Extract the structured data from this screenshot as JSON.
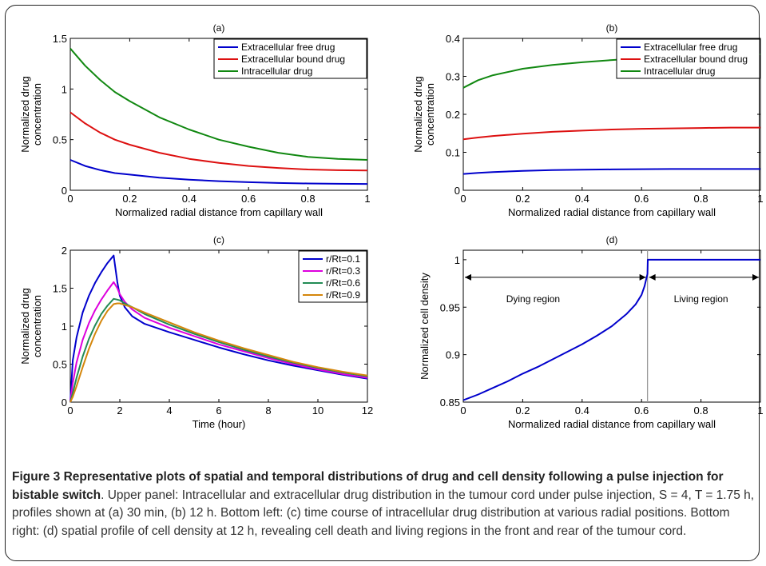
{
  "caption": {
    "title": "Figure 3 Representative plots of spatial and temporal distributions of drug and cell density following a pulse injection for bistable switch",
    "body": ". Upper panel: Intracellular and extracellular drug distribution in the tumour cord under pulse injection, S = 4, T = 1.75 h, profiles shown at (a) 30 min, (b) 12 h. Bottom left: (c) time course of intracellular drug distribution at various radial positions. Bottom right: (d) spatial profile of cell density at 12 h, revealing cell death and living regions in the front and rear of the tumour cord."
  },
  "chart_data": [
    {
      "id": "a",
      "type": "line",
      "title": "(a)",
      "xlabel": "Normalized radial distance from capillary wall",
      "ylabel": "Normalized drug concentration",
      "ylabel_lines": [
        "Normalized drug",
        "concentration"
      ],
      "xlim": [
        0,
        1
      ],
      "ylim": [
        0,
        1.5
      ],
      "xticks": [
        0,
        0.2,
        0.4,
        0.6,
        0.8,
        1
      ],
      "xticklabels": [
        "0",
        "0.2",
        "0.4",
        "0.6",
        "0.8",
        "1"
      ],
      "yticks": [
        0,
        0.5,
        1,
        1.5
      ],
      "yticklabels": [
        "0",
        "0.5",
        "1",
        "1.5"
      ],
      "legend_position": "top-right",
      "series": [
        {
          "name": "Extracellular free drug",
          "color": "#0000cc",
          "x": [
            0,
            0.05,
            0.1,
            0.15,
            0.2,
            0.3,
            0.4,
            0.5,
            0.6,
            0.7,
            0.8,
            0.9,
            1.0
          ],
          "y": [
            0.3,
            0.24,
            0.2,
            0.17,
            0.155,
            0.125,
            0.105,
            0.09,
            0.08,
            0.072,
            0.067,
            0.064,
            0.062
          ]
        },
        {
          "name": "Extracellular bound drug",
          "color": "#dd1111",
          "x": [
            0,
            0.05,
            0.1,
            0.15,
            0.2,
            0.3,
            0.4,
            0.5,
            0.6,
            0.7,
            0.8,
            0.9,
            1.0
          ],
          "y": [
            0.77,
            0.66,
            0.57,
            0.5,
            0.45,
            0.37,
            0.31,
            0.27,
            0.24,
            0.22,
            0.205,
            0.198,
            0.195
          ]
        },
        {
          "name": "Intracellular drug",
          "color": "#118811",
          "x": [
            0,
            0.05,
            0.1,
            0.15,
            0.2,
            0.3,
            0.4,
            0.5,
            0.6,
            0.7,
            0.8,
            0.9,
            1.0
          ],
          "y": [
            1.4,
            1.23,
            1.09,
            0.97,
            0.88,
            0.72,
            0.6,
            0.5,
            0.43,
            0.37,
            0.33,
            0.31,
            0.3
          ]
        }
      ]
    },
    {
      "id": "b",
      "type": "line",
      "title": "(b)",
      "xlabel": "Normalized radial distance from capillary wall",
      "ylabel": "Normalized drug concentration",
      "ylabel_lines": [
        "Normalized drug",
        "concentration"
      ],
      "xlim": [
        0,
        1
      ],
      "ylim": [
        0,
        0.4
      ],
      "xticks": [
        0,
        0.2,
        0.4,
        0.6,
        0.8,
        1
      ],
      "xticklabels": [
        "0",
        "0.2",
        "0.4",
        "0.6",
        "0.8",
        "1"
      ],
      "yticks": [
        0,
        0.1,
        0.2,
        0.3,
        0.4
      ],
      "yticklabels": [
        "0",
        "0.1",
        "0.2",
        "0.3",
        "0.4"
      ],
      "legend_position": "top-right",
      "series": [
        {
          "name": "Extracellular free drug",
          "color": "#0000cc",
          "x": [
            0,
            0.05,
            0.1,
            0.2,
            0.3,
            0.4,
            0.5,
            0.6,
            0.7,
            0.8,
            0.9,
            1.0
          ],
          "y": [
            0.043,
            0.046,
            0.048,
            0.051,
            0.053,
            0.054,
            0.055,
            0.0555,
            0.056,
            0.056,
            0.056,
            0.056
          ]
        },
        {
          "name": "Extracellular bound drug",
          "color": "#dd1111",
          "x": [
            0,
            0.05,
            0.1,
            0.2,
            0.3,
            0.4,
            0.5,
            0.6,
            0.7,
            0.8,
            0.9,
            1.0
          ],
          "y": [
            0.134,
            0.139,
            0.143,
            0.149,
            0.154,
            0.157,
            0.16,
            0.162,
            0.163,
            0.164,
            0.165,
            0.165
          ]
        },
        {
          "name": "Intracellular drug",
          "color": "#118811",
          "x": [
            0,
            0.05,
            0.1,
            0.2,
            0.3,
            0.4,
            0.5,
            0.6,
            0.7,
            0.8,
            0.9,
            1.0
          ],
          "y": [
            0.27,
            0.29,
            0.303,
            0.32,
            0.33,
            0.337,
            0.343,
            0.348,
            0.352,
            0.355,
            0.357,
            0.358
          ]
        }
      ]
    },
    {
      "id": "c",
      "type": "line",
      "title": "(c)",
      "xlabel": "Time (hour)",
      "ylabel": "Normalized drug concentration",
      "ylabel_lines": [
        "Normalized drug",
        "concentration"
      ],
      "xlim": [
        0,
        12
      ],
      "ylim": [
        0,
        2
      ],
      "xticks": [
        0,
        2,
        4,
        6,
        8,
        10,
        12
      ],
      "xticklabels": [
        "0",
        "2",
        "4",
        "6",
        "8",
        "10",
        "12"
      ],
      "yticks": [
        0,
        0.5,
        1,
        1.5,
        2
      ],
      "yticklabels": [
        "0",
        "0.5",
        "1",
        "1.5",
        "2"
      ],
      "legend_position": "top-right",
      "series": [
        {
          "name": "r/Rt=0.1",
          "color": "#0000cc",
          "x": [
            0,
            0.1,
            0.25,
            0.5,
            0.75,
            1.0,
            1.25,
            1.5,
            1.75,
            1.9,
            2.0,
            2.2,
            2.5,
            3,
            4,
            5,
            6,
            7,
            8,
            9,
            10,
            11,
            12
          ],
          "y": [
            0,
            0.55,
            0.85,
            1.18,
            1.4,
            1.57,
            1.71,
            1.83,
            1.93,
            1.58,
            1.4,
            1.25,
            1.13,
            1.03,
            0.92,
            0.82,
            0.72,
            0.63,
            0.55,
            0.48,
            0.42,
            0.36,
            0.31
          ]
        },
        {
          "name": "r/Rt=0.3",
          "color": "#dd00dd",
          "x": [
            0,
            0.1,
            0.25,
            0.5,
            0.75,
            1.0,
            1.25,
            1.5,
            1.75,
            1.9,
            2.0,
            2.2,
            2.5,
            3,
            4,
            5,
            6,
            7,
            8,
            9,
            10,
            11,
            12
          ],
          "y": [
            0,
            0.25,
            0.52,
            0.82,
            1.04,
            1.21,
            1.35,
            1.47,
            1.58,
            1.5,
            1.42,
            1.32,
            1.22,
            1.11,
            0.98,
            0.87,
            0.76,
            0.67,
            0.58,
            0.5,
            0.43,
            0.37,
            0.32
          ]
        },
        {
          "name": "r/Rt=0.6",
          "color": "#228b55",
          "x": [
            0,
            0.1,
            0.25,
            0.5,
            0.75,
            1.0,
            1.25,
            1.5,
            1.75,
            1.9,
            2.0,
            2.2,
            2.5,
            3,
            4,
            5,
            6,
            7,
            8,
            9,
            10,
            11,
            12
          ],
          "y": [
            0,
            0.12,
            0.32,
            0.6,
            0.83,
            1.01,
            1.16,
            1.27,
            1.36,
            1.35,
            1.34,
            1.3,
            1.25,
            1.16,
            1.02,
            0.9,
            0.79,
            0.69,
            0.6,
            0.52,
            0.45,
            0.39,
            0.34
          ]
        },
        {
          "name": "r/Rt=0.9",
          "color": "#d4860b",
          "x": [
            0,
            0.1,
            0.25,
            0.5,
            0.75,
            1.0,
            1.25,
            1.5,
            1.75,
            1.9,
            2.0,
            2.2,
            2.5,
            3,
            4,
            5,
            6,
            7,
            8,
            9,
            10,
            11,
            12
          ],
          "y": [
            0,
            0.07,
            0.21,
            0.46,
            0.7,
            0.9,
            1.07,
            1.2,
            1.29,
            1.3,
            1.3,
            1.28,
            1.25,
            1.18,
            1.05,
            0.92,
            0.81,
            0.71,
            0.62,
            0.53,
            0.46,
            0.4,
            0.35
          ]
        }
      ]
    },
    {
      "id": "d",
      "type": "line",
      "title": "(d)",
      "xlabel": "Normalized radial distance from capillary wall",
      "ylabel": "Normalized cell density",
      "ylabel_lines": [
        "Normalized cell density"
      ],
      "xlim": [
        0,
        1
      ],
      "ylim": [
        0.85,
        1.01
      ],
      "xticks": [
        0,
        0.2,
        0.4,
        0.6,
        0.8,
        1
      ],
      "xticklabels": [
        "0",
        "0.2",
        "0.4",
        "0.6",
        "0.8",
        "1"
      ],
      "yticks": [
        0.85,
        0.9,
        0.95,
        1
      ],
      "yticklabels": [
        "0.85",
        "0.9",
        "0.95",
        "1"
      ],
      "boundary_x": 0.62,
      "annotations": [
        {
          "text": "Dying region",
          "x": 0.235,
          "y": 0.9585,
          "arrow_from": 0,
          "arrow_to": 0.62,
          "arrow_y": 0.9815
        },
        {
          "text": "Living region",
          "x": 0.8,
          "y": 0.9585,
          "arrow_from": 0.62,
          "arrow_to": 1.0,
          "arrow_y": 0.9815
        }
      ],
      "series": [
        {
          "name": "",
          "color": "#0000cc",
          "x": [
            0,
            0.05,
            0.1,
            0.15,
            0.2,
            0.25,
            0.3,
            0.35,
            0.4,
            0.45,
            0.5,
            0.55,
            0.58,
            0.6,
            0.61,
            0.62,
            0.621,
            0.7,
            0.8,
            0.9,
            1.0
          ],
          "y": [
            0.852,
            0.858,
            0.865,
            0.872,
            0.88,
            0.887,
            0.895,
            0.903,
            0.911,
            0.92,
            0.93,
            0.943,
            0.953,
            0.963,
            0.972,
            0.985,
            1.0,
            1.0,
            1.0,
            1.0,
            1.0
          ]
        }
      ]
    }
  ]
}
